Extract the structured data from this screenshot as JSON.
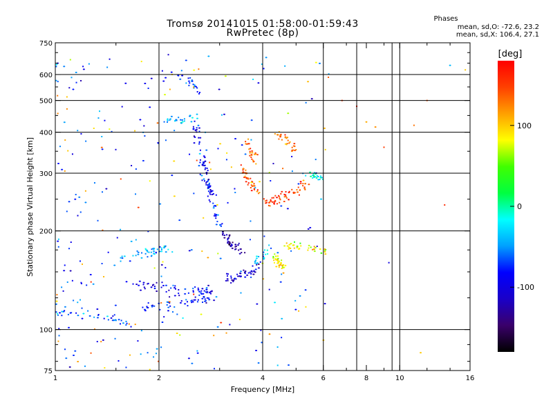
{
  "chart_data": {
    "type": "scatter",
    "title": "Tromsø 20141015 01:58:00-01:59:43",
    "subtitle": "RwPretec (8p)",
    "stats": {
      "heading": "Phases",
      "line1": "mean, sd,O: -72.6, 23.2",
      "line2": "mean, sd,X: 106.4, 27.1"
    },
    "xlabel": "Frequency [MHz]",
    "ylabel": "Stationary phase Virtual Height [km]",
    "x_scale": "log",
    "y_scale": "log",
    "xlim": [
      1,
      16
    ],
    "ylim": [
      75,
      750
    ],
    "x_ticks": [
      1,
      2,
      4,
      6,
      8,
      10,
      16
    ],
    "x_tick_labels": [
      "1",
      "2",
      "4",
      "6",
      "8",
      "10",
      "16"
    ],
    "x_grid": [
      2,
      4,
      6,
      7.5,
      9.5,
      10
    ],
    "y_ticks": [
      75,
      100,
      200,
      300,
      400,
      500,
      600,
      750
    ],
    "y_tick_labels": [
      "75",
      "100",
      "200",
      "300",
      "400",
      "500",
      "600",
      "750"
    ],
    "y_grid": [
      100,
      200,
      300,
      400,
      500,
      600
    ],
    "grid": true,
    "colorbar": {
      "label": "[deg]",
      "range": [
        -180,
        180
      ],
      "ticks": [
        100,
        0,
        -100
      ],
      "tick_labels": [
        "100",
        "0",
        "-100"
      ],
      "colors": [
        "#000000",
        "#3a006a",
        "#1a00c8",
        "#0000ff",
        "#00a0ff",
        "#00ffff",
        "#00ff40",
        "#40ff00",
        "#ffff00",
        "#ffa000",
        "#ff4000",
        "#ff0000"
      ]
    },
    "clusters": [
      {
        "name": "O-mode",
        "mean_phase": -72.6,
        "sd_phase": 23.2
      },
      {
        "name": "X-mode",
        "mean_phase": 106.4,
        "sd_phase": 27.1
      }
    ],
    "traces": [
      {
        "x": [
          1.0,
          1.1,
          1.25,
          1.45,
          1.65
        ],
        "y": [
          110,
          113,
          112,
          108,
          105
        ],
        "phase": -60,
        "n": 40
      },
      {
        "x": [
          1.5,
          1.7,
          1.9,
          2.0,
          2.15
        ],
        "y": [
          165,
          170,
          172,
          175,
          178
        ],
        "phase": -40,
        "n": 45
      },
      {
        "x": [
          1.6,
          1.8,
          2.0,
          2.3,
          2.6,
          2.9
        ],
        "y": [
          140,
          137,
          135,
          133,
          131,
          130
        ],
        "phase": -95,
        "n": 60
      },
      {
        "x": [
          1.8,
          2.0,
          2.3,
          2.6,
          2.85
        ],
        "y": [
          117,
          118,
          120,
          123,
          125
        ],
        "phase": -85,
        "n": 50
      },
      {
        "x": [
          2.05,
          2.2,
          2.4,
          2.6
        ],
        "y": [
          430,
          432,
          440,
          448
        ],
        "phase": -40,
        "n": 25
      },
      {
        "x": [
          2.2,
          2.35,
          2.5,
          2.6
        ],
        "y": [
          620,
          590,
          560,
          530
        ],
        "phase": -70,
        "n": 25
      },
      {
        "x": [
          2.55,
          2.65,
          2.75,
          2.85
        ],
        "y": [
          420,
          360,
          300,
          250
        ],
        "phase": -90,
        "n": 55
      },
      {
        "x": [
          2.7,
          2.8,
          2.9,
          3.0
        ],
        "y": [
          300,
          260,
          230,
          210
        ],
        "phase": -80,
        "n": 40
      },
      {
        "x": [
          3.05,
          3.15,
          3.3,
          3.5
        ],
        "y": [
          200,
          190,
          180,
          175
        ],
        "phase": -130,
        "n": 40
      },
      {
        "x": [
          3.1,
          3.3,
          3.6,
          3.9
        ],
        "y": [
          145,
          143,
          147,
          155
        ],
        "phase": -115,
        "n": 45
      },
      {
        "x": [
          3.8,
          4.0,
          4.2
        ],
        "y": [
          160,
          168,
          175
        ],
        "phase": -40,
        "n": 20
      },
      {
        "x": [
          3.5,
          3.6,
          3.75,
          3.9
        ],
        "y": [
          310,
          290,
          275,
          260
        ],
        "phase": 140,
        "n": 40
      },
      {
        "x": [
          3.6,
          3.7,
          3.8
        ],
        "y": [
          380,
          350,
          330
        ],
        "phase": 130,
        "n": 25
      },
      {
        "x": [
          4.1,
          4.4,
          4.7,
          5.0,
          5.4
        ],
        "y": [
          245,
          250,
          255,
          265,
          280
        ],
        "phase": 150,
        "n": 60
      },
      {
        "x": [
          4.4,
          4.7,
          5.0
        ],
        "y": [
          400,
          380,
          350
        ],
        "phase": 130,
        "n": 30
      },
      {
        "x": [
          4.3,
          4.45,
          4.6
        ],
        "y": [
          165,
          160,
          155
        ],
        "phase": 90,
        "n": 40
      },
      {
        "x": [
          4.7,
          5.1,
          5.6,
          6.2
        ],
        "y": [
          180,
          178,
          176,
          175
        ],
        "phase": 80,
        "n": 35
      },
      {
        "x": [
          5.4,
          5.7,
          6.0
        ],
        "y": [
          300,
          295,
          290
        ],
        "phase": -10,
        "n": 20
      }
    ],
    "background_scatter": {
      "n": 320,
      "x_range": [
        1,
        16
      ],
      "y_range": [
        75,
        700
      ]
    },
    "isolated_points": [
      {
        "x": 6.8,
        "y": 500,
        "phase": 150
      },
      {
        "x": 7.5,
        "y": 480,
        "phase": 170
      },
      {
        "x": 8.0,
        "y": 430,
        "phase": 110
      },
      {
        "x": 8.5,
        "y": 415,
        "phase": 120
      },
      {
        "x": 9.0,
        "y": 360,
        "phase": 150
      },
      {
        "x": 11.0,
        "y": 420,
        "phase": 130
      },
      {
        "x": 12.0,
        "y": 500,
        "phase": 140
      },
      {
        "x": 13.5,
        "y": 240,
        "phase": 160
      },
      {
        "x": 15.5,
        "y": 620,
        "phase": 100
      },
      {
        "x": 9.3,
        "y": 160,
        "phase": -100
      },
      {
        "x": 11.5,
        "y": 85,
        "phase": 100
      },
      {
        "x": 14.0,
        "y": 640,
        "phase": -40
      }
    ]
  }
}
